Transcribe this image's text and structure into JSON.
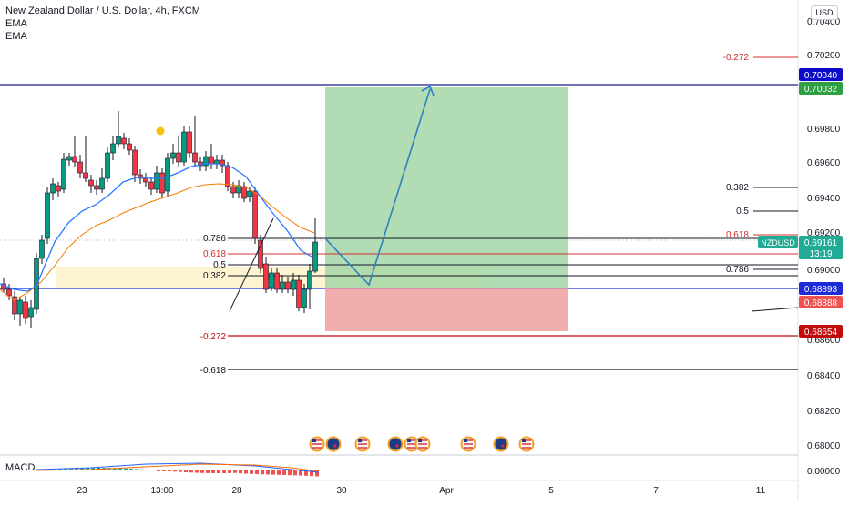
{
  "header": {
    "title": "New Zealand Dollar / U.S. Dollar, 4h, FXCM",
    "indicators": [
      "EMA",
      "EMA"
    ],
    "currency_button": "USD"
  },
  "price_axis": {
    "ticks": [
      "0.70400",
      "0.70200",
      "0.69800",
      "0.69600",
      "0.69400",
      "0.69200",
      "0.69000",
      "0.68600",
      "0.68400",
      "0.68200",
      "0.68000"
    ],
    "macd_tick": "0.00000",
    "badges": [
      {
        "label": "0.70040",
        "color": "#0c0cc9"
      },
      {
        "label": "0.70032",
        "color": "#2ea043"
      },
      {
        "label": "0.69161",
        "color": "#22ab94"
      },
      {
        "label": "13:19",
        "color": "#22ab94"
      },
      {
        "label": "0.68893",
        "color": "#1e2bd6"
      },
      {
        "label": "0.68888",
        "color": "#ef5350"
      },
      {
        "label": "0.68654",
        "color": "#c20c0c"
      }
    ],
    "symbol_tag": "NZDUSD"
  },
  "time_axis": {
    "labels": [
      "23",
      "13:00",
      "28",
      "30",
      "Apr",
      "5",
      "7",
      "11"
    ]
  },
  "fib_left": {
    "levels": [
      "0.786",
      "0.618",
      "0.5",
      "0.382",
      "-0.272",
      "-0.618"
    ]
  },
  "fib_right": {
    "levels": [
      "-0.272",
      "0.382",
      "0.5",
      "0.618",
      "0.786"
    ]
  },
  "macd": {
    "label": "MACD"
  },
  "colors": {
    "up": "#089981",
    "down": "#f23645",
    "ema_fast": "#2962ff",
    "ema_slow": "#f57c00",
    "profit_zone": "#a5d6a7",
    "loss_zone": "#ef9a9a",
    "entry_line": "#1e2bd6",
    "target_line": "#1a1a8c"
  },
  "events": {
    "icons": [
      "us-flag-icon",
      "us-flag-icon",
      "nz-flag-icon",
      "nz-flag-icon",
      "us-flag-icon",
      "us-flag-icon",
      "nz-flag-icon",
      "us-flag-icon"
    ]
  }
}
